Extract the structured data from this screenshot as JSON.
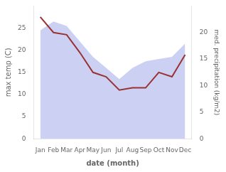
{
  "chart_data": {
    "type": "line",
    "categories": [
      "Jan",
      "Feb",
      "Mar",
      "Apr",
      "May",
      "Jun",
      "Jul",
      "Aug",
      "Sep",
      "Oct",
      "Nov",
      "Dec"
    ],
    "xlabel": "date (month)",
    "ylabel": "max temp (C)",
    "y2label": "med. precipitation (kg/m2)",
    "ylim": [
      0,
      30
    ],
    "yticks": [
      0,
      5,
      10,
      15,
      20,
      25
    ],
    "y2lim": [
      0,
      25
    ],
    "y2ticks": [
      0,
      5,
      10,
      15,
      20
    ],
    "grid": false,
    "series": [
      {
        "type": "area",
        "color": "#b0b8ee",
        "values": [
          24.5,
          26.5,
          25.5,
          22.0,
          18.5,
          16.0,
          13.5,
          16.0,
          17.5,
          18.0,
          18.5,
          21.5
        ]
      },
      {
        "type": "line",
        "color": "#993333",
        "values": [
          27.5,
          24.0,
          23.5,
          19.5,
          15.0,
          14.0,
          11.0,
          11.5,
          11.5,
          15.0,
          14.0,
          19.0
        ]
      }
    ]
  }
}
